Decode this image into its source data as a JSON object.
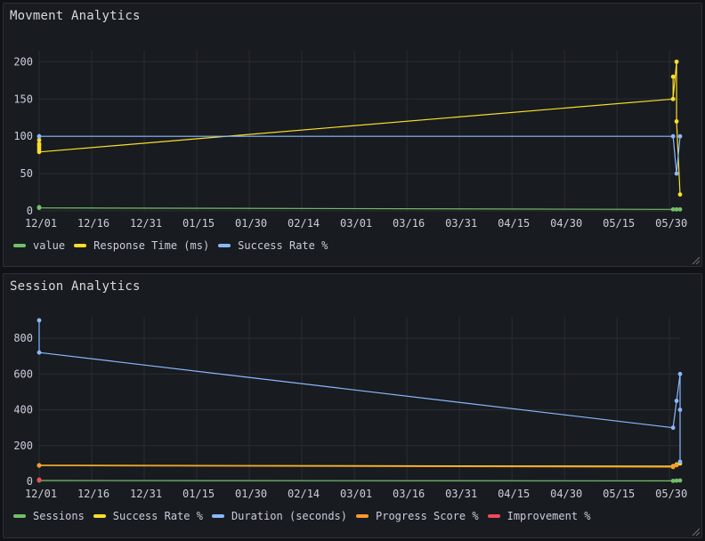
{
  "colors": {
    "green": "#73bf69",
    "yellow": "#fade2a",
    "blue": "#8ab8ff",
    "orange": "#ff9830",
    "red": "#f2495c",
    "grid": "#2a2d33",
    "axis_text": "#ccccdc"
  },
  "x_ticks": [
    "12/01",
    "12/16",
    "12/31",
    "01/15",
    "01/30",
    "02/14",
    "03/01",
    "03/16",
    "03/31",
    "04/15",
    "04/30",
    "05/15",
    "05/30"
  ],
  "chart_data": [
    {
      "type": "line",
      "title": "Movment Analytics",
      "xlabel": "",
      "ylabel": "",
      "x_ticks": [
        "12/01",
        "12/16",
        "12/31",
        "01/15",
        "01/30",
        "02/14",
        "03/01",
        "03/16",
        "03/31",
        "04/15",
        "04/30",
        "05/15",
        "05/30"
      ],
      "y_ticks": [
        0,
        50,
        100,
        150,
        200
      ],
      "ylim": [
        0,
        210
      ],
      "xlim": [
        "2023-12-01",
        "2024-06-01"
      ],
      "grid": true,
      "legend": "bottom",
      "series": [
        {
          "name": "value",
          "color": "#73bf69",
          "x": [
            "2023-12-01",
            "2023-12-01",
            "2024-05-30",
            "2024-05-31",
            "2024-06-01"
          ],
          "y": [
            5,
            4,
            2,
            2,
            2
          ]
        },
        {
          "name": "Response Time (ms)",
          "color": "#fade2a",
          "x": [
            "2023-12-01",
            "2023-12-01",
            "2023-12-01",
            "2023-12-01",
            "2023-12-01",
            "2023-12-01",
            "2024-05-30",
            "2024-05-30",
            "2024-05-30",
            "2024-05-31",
            "2024-05-31",
            "2024-06-01"
          ],
          "y": [
            95,
            90,
            88,
            85,
            82,
            79,
            150,
            180,
            150,
            200,
            120,
            22
          ]
        },
        {
          "name": "Success Rate %",
          "color": "#8ab8ff",
          "x": [
            "2023-12-01",
            "2023-12-01",
            "2024-05-30",
            "2024-05-31",
            "2024-06-01"
          ],
          "y": [
            100,
            100,
            100,
            50,
            100
          ]
        }
      ]
    },
    {
      "type": "line",
      "title": "Session Analytics",
      "xlabel": "",
      "ylabel": "",
      "x_ticks": [
        "12/01",
        "12/16",
        "12/31",
        "01/15",
        "01/30",
        "02/14",
        "03/01",
        "03/16",
        "03/31",
        "04/15",
        "04/30",
        "05/15",
        "05/30"
      ],
      "y_ticks": [
        0,
        200,
        400,
        600,
        800
      ],
      "ylim": [
        0,
        900
      ],
      "xlim": [
        "2023-12-01",
        "2024-06-01"
      ],
      "grid": true,
      "legend": "bottom",
      "series": [
        {
          "name": "Sessions",
          "color": "#73bf69",
          "x": [
            "2023-12-01",
            "2024-05-30",
            "2024-05-31",
            "2024-06-01"
          ],
          "y": [
            5,
            3,
            4,
            5
          ]
        },
        {
          "name": "Success Rate %",
          "color": "#fade2a",
          "x": [
            "2023-12-01",
            "2024-05-30",
            "2024-05-31",
            "2024-06-01"
          ],
          "y": [
            90,
            85,
            95,
            100
          ]
        },
        {
          "name": "Duration (seconds)",
          "color": "#8ab8ff",
          "x": [
            "2023-12-01",
            "2023-12-01",
            "2024-05-30",
            "2024-05-31",
            "2024-06-01",
            "2024-06-01",
            "2024-06-01"
          ],
          "y": [
            900,
            720,
            300,
            450,
            600,
            400,
            110
          ]
        },
        {
          "name": "Progress Score %",
          "color": "#ff9830",
          "x": [
            "2023-12-01",
            "2024-05-30",
            "2024-05-31"
          ],
          "y": [
            88,
            80,
            90
          ]
        },
        {
          "name": "Improvement %",
          "color": "#f2495c",
          "x": [
            "2023-12-01",
            "2023-12-01"
          ],
          "y": [
            10,
            8
          ]
        }
      ]
    }
  ]
}
